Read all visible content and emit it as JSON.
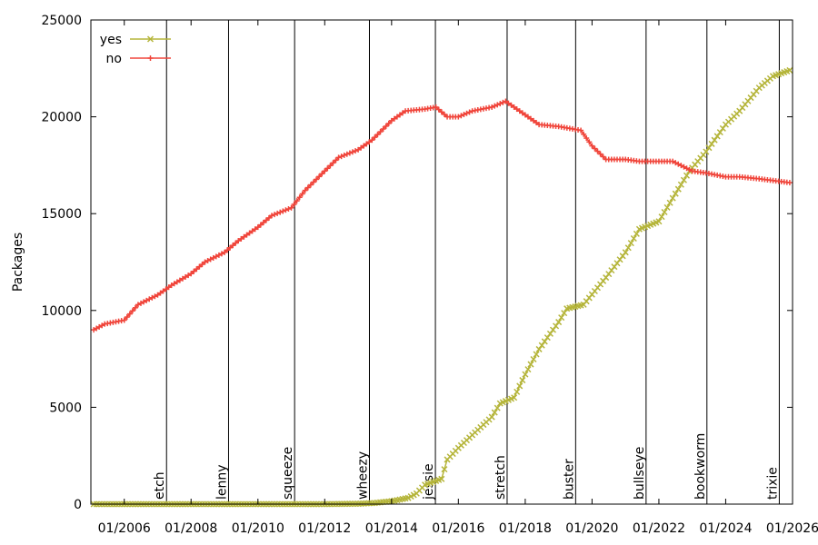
{
  "chart_data": {
    "type": "line",
    "title": "",
    "xlabel": "",
    "ylabel": "Packages",
    "xlim": [
      "2005-01-01",
      "2026-01-01"
    ],
    "ylim": [
      0,
      25000
    ],
    "x_ticks": [
      "01/2006",
      "01/2008",
      "01/2010",
      "01/2012",
      "01/2014",
      "01/2016",
      "01/2018",
      "01/2020",
      "01/2022",
      "01/2024",
      "01/2026"
    ],
    "y_ticks": [
      0,
      5000,
      10000,
      15000,
      20000,
      25000
    ],
    "grid": false,
    "legend_position": "top-left",
    "releases": [
      {
        "name": "etch",
        "date": "2007-04-08"
      },
      {
        "name": "lenny",
        "date": "2009-02-14"
      },
      {
        "name": "squeeze",
        "date": "2011-02-06"
      },
      {
        "name": "wheezy",
        "date": "2013-05-04"
      },
      {
        "name": "jessie",
        "date": "2015-04-25"
      },
      {
        "name": "stretch",
        "date": "2017-06-17"
      },
      {
        "name": "buster",
        "date": "2019-07-06"
      },
      {
        "name": "bullseye",
        "date": "2021-08-14"
      },
      {
        "name": "bookworm",
        "date": "2023-06-10"
      },
      {
        "name": "trixie",
        "date": "2025-08-09"
      }
    ],
    "series": [
      {
        "name": "yes",
        "color": "#b5b53a",
        "marker": "x",
        "points": [
          [
            "2005-02-01",
            0
          ],
          [
            "2006-01-01",
            0
          ],
          [
            "2008-01-01",
            0
          ],
          [
            "2010-01-01",
            0
          ],
          [
            "2012-01-01",
            0
          ],
          [
            "2013-01-01",
            20
          ],
          [
            "2013-07-01",
            60
          ],
          [
            "2014-01-01",
            150
          ],
          [
            "2014-07-01",
            320
          ],
          [
            "2014-10-01",
            550
          ],
          [
            "2015-01-01",
            1000
          ],
          [
            "2015-04-01",
            1150
          ],
          [
            "2015-07-01",
            1300
          ],
          [
            "2015-09-01",
            2300
          ],
          [
            "2016-01-01",
            2900
          ],
          [
            "2016-07-01",
            3700
          ],
          [
            "2017-01-01",
            4500
          ],
          [
            "2017-04-01",
            5200
          ],
          [
            "2017-09-01",
            5500
          ],
          [
            "2018-01-01",
            6700
          ],
          [
            "2018-06-01",
            8000
          ],
          [
            "2019-01-01",
            9400
          ],
          [
            "2019-04-01",
            10100
          ],
          [
            "2019-10-01",
            10300
          ],
          [
            "2020-06-01",
            11700
          ],
          [
            "2021-01-01",
            13000
          ],
          [
            "2021-06-01",
            14200
          ],
          [
            "2022-01-01",
            14600
          ],
          [
            "2022-06-01",
            15800
          ],
          [
            "2022-12-01",
            17200
          ],
          [
            "2023-06-01",
            18200
          ],
          [
            "2024-01-01",
            19600
          ],
          [
            "2024-06-01",
            20300
          ],
          [
            "2025-01-01",
            21500
          ],
          [
            "2025-06-01",
            22100
          ],
          [
            "2025-12-01",
            22400
          ]
        ]
      },
      {
        "name": "no",
        "color": "#f0453b",
        "marker": "+",
        "points": [
          [
            "2005-02-01",
            9000
          ],
          [
            "2005-06-01",
            9300
          ],
          [
            "2006-01-01",
            9500
          ],
          [
            "2006-06-01",
            10300
          ],
          [
            "2007-01-01",
            10800
          ],
          [
            "2007-06-01",
            11300
          ],
          [
            "2008-01-01",
            11900
          ],
          [
            "2008-06-01",
            12500
          ],
          [
            "2009-01-01",
            13000
          ],
          [
            "2009-06-01",
            13600
          ],
          [
            "2010-01-01",
            14300
          ],
          [
            "2010-06-01",
            14900
          ],
          [
            "2011-01-01",
            15300
          ],
          [
            "2011-06-01",
            16200
          ],
          [
            "2012-01-01",
            17200
          ],
          [
            "2012-06-01",
            17900
          ],
          [
            "2013-01-01",
            18300
          ],
          [
            "2013-06-01",
            18800
          ],
          [
            "2014-01-01",
            19800
          ],
          [
            "2014-06-01",
            20300
          ],
          [
            "2015-01-01",
            20400
          ],
          [
            "2015-05-01",
            20500
          ],
          [
            "2015-09-01",
            20000
          ],
          [
            "2016-01-01",
            20000
          ],
          [
            "2016-06-01",
            20300
          ],
          [
            "2017-01-01",
            20500
          ],
          [
            "2017-06-01",
            20800
          ],
          [
            "2018-01-01",
            20100
          ],
          [
            "2018-06-01",
            19600
          ],
          [
            "2019-01-01",
            19500
          ],
          [
            "2019-09-01",
            19300
          ],
          [
            "2020-01-01",
            18500
          ],
          [
            "2020-06-01",
            17800
          ],
          [
            "2021-01-01",
            17800
          ],
          [
            "2021-06-01",
            17700
          ],
          [
            "2022-01-01",
            17700
          ],
          [
            "2022-06-01",
            17700
          ],
          [
            "2023-01-01",
            17200
          ],
          [
            "2023-06-01",
            17100
          ],
          [
            "2024-01-01",
            16900
          ],
          [
            "2024-06-01",
            16900
          ],
          [
            "2025-01-01",
            16800
          ],
          [
            "2025-12-01",
            16600
          ]
        ]
      }
    ]
  }
}
